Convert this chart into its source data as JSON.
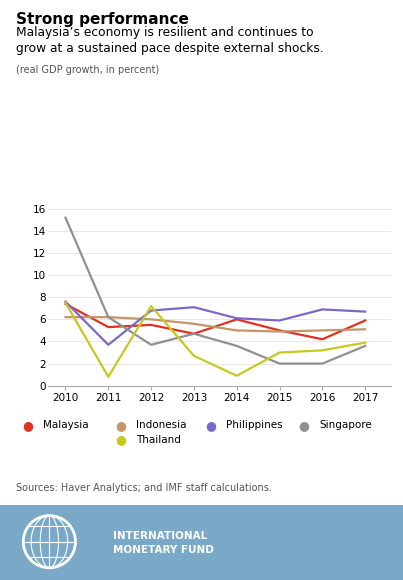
{
  "title_bold": "Strong performance",
  "title_sub": "Malaysia’s economy is resilient and continues to\ngrow at a sustained pace despite external shocks.",
  "title_small": "(real GDP growth, in percent)",
  "years": [
    2010,
    2011,
    2012,
    2013,
    2014,
    2015,
    2016,
    2017
  ],
  "malaysia": [
    7.4,
    5.3,
    5.5,
    4.7,
    6.0,
    5.0,
    4.2,
    5.9
  ],
  "indonesia": [
    6.2,
    6.2,
    6.0,
    5.6,
    5.0,
    4.9,
    5.0,
    5.1
  ],
  "philippines": [
    7.6,
    3.7,
    6.8,
    7.1,
    6.1,
    5.9,
    6.9,
    6.7
  ],
  "singapore": [
    15.2,
    6.2,
    3.7,
    4.7,
    3.6,
    2.0,
    2.0,
    3.6
  ],
  "thailand": [
    7.5,
    0.8,
    7.2,
    2.7,
    0.9,
    3.0,
    3.2,
    3.9
  ],
  "malaysia_color": "#e03020",
  "indonesia_color": "#c4956a",
  "philippines_color": "#7b68c8",
  "singapore_color": "#909090",
  "thailand_color": "#c8c820",
  "ylim": [
    0,
    16
  ],
  "yticks": [
    0,
    2,
    4,
    6,
    8,
    10,
    12,
    14,
    16
  ],
  "bg_color": "#ffffff",
  "footer_color": "#7aa9c8",
  "sources_text": "Sources: Haver Analytics; and IMF staff calculations.",
  "line_width": 1.6
}
